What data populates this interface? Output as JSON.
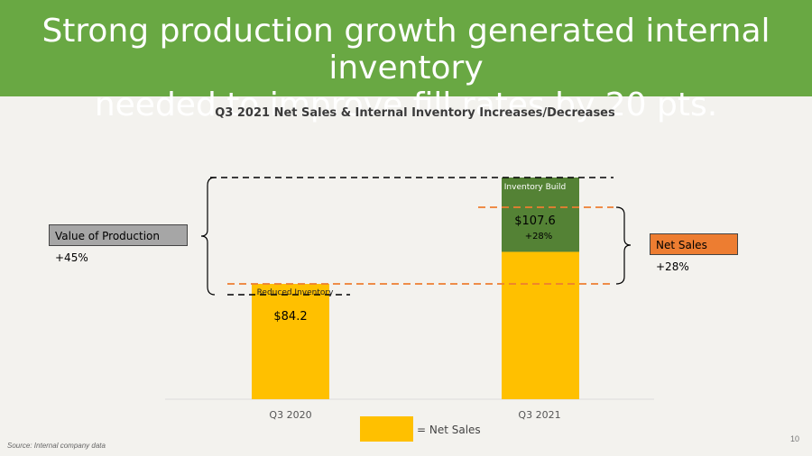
{
  "header": {
    "title_line1": "Strong production growth generated internal inventory",
    "title_line2": "needed to improve fill rates by 20 pts."
  },
  "chart_data": {
    "type": "bar",
    "title": "Q3 2021 Net Sales & Internal Inventory Increases/Decreases",
    "categories": [
      "Q3 2020",
      "Q3 2021"
    ],
    "series": [
      {
        "name": "Net Sales",
        "values": [
          84.2,
          107.6
        ]
      }
    ],
    "value_labels": [
      "$84.2",
      "$107.6"
    ],
    "bar_annotations": [
      "",
      "+28%"
    ],
    "segments": {
      "reduced_inventory": "Reduced Inventory",
      "inventory_build": "Inventory Build"
    },
    "callouts": {
      "value_of_production": "Value of Production +45%",
      "net_sales": "Net Sales +28%"
    },
    "legend_label": "= Net Sales",
    "colors": {
      "net_sales": "#ffc000",
      "inventory_build": "#548235",
      "header": "#69a843",
      "net_sales_callout": "#ed7d31",
      "production_callout": "#a6a6a6"
    }
  },
  "footer": {
    "source": "Source:  Internal company data",
    "page_number": "10"
  }
}
